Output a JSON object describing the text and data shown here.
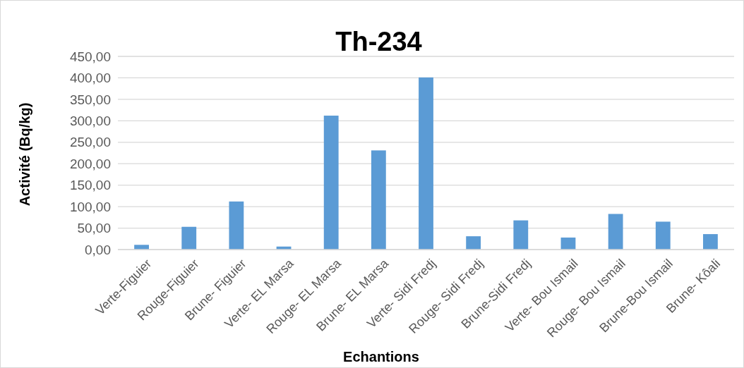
{
  "chart_data": {
    "type": "bar",
    "title": "Th-234",
    "xlabel": "Echantions",
    "ylabel": "Activité (Bq/kg)",
    "categories": [
      "Verte-Figuier",
      "Rouge-Figuier",
      "Brune- Figuier",
      "Verte- EL Marsa",
      "Rouge- EL Marsa",
      "Brune- EL Marsa",
      "Verte- Sidi Fredj",
      "Rouge- Sidi Fredj",
      "Brune-Sidi Fredj",
      "Verte- Bou Ismail",
      "Rouge- Bou Ismail",
      "Brune-Bou Ismail",
      "Brune- Kôali"
    ],
    "values": [
      11,
      53,
      112,
      7,
      312,
      231,
      401,
      31,
      68,
      28,
      83,
      65,
      36
    ],
    "color": "#5b9bd5",
    "ylim": [
      0,
      450
    ],
    "yticks": [
      {
        "value": 0,
        "label": "0,00"
      },
      {
        "value": 50,
        "label": "50,00"
      },
      {
        "value": 100,
        "label": "100,00"
      },
      {
        "value": 150,
        "label": "150,00"
      },
      {
        "value": 200,
        "label": "200,00"
      },
      {
        "value": 250,
        "label": "250,00"
      },
      {
        "value": 300,
        "label": "300,00"
      },
      {
        "value": 350,
        "label": "350,00"
      },
      {
        "value": 400,
        "label": "400,00"
      },
      {
        "value": 450,
        "label": "450,00"
      }
    ],
    "grid": "y"
  }
}
